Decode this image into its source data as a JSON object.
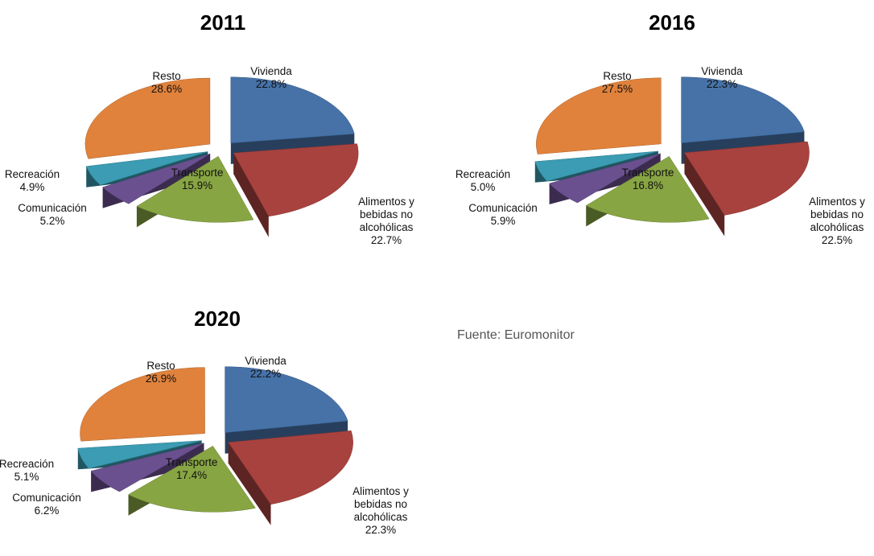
{
  "chart_data": [
    {
      "type": "pie",
      "title": "2011",
      "categories": [
        "Vivienda",
        "Alimentos y bebidas no alcohólicas",
        "Transporte",
        "Comunicación",
        "Recreación",
        "Resto"
      ],
      "values": [
        22.8,
        22.7,
        15.9,
        5.2,
        4.9,
        28.6
      ],
      "value_labels": [
        "22.8%",
        "22.7%",
        "15.9%",
        "5.2%",
        "4.9%",
        "28.6%"
      ],
      "colors": [
        "#4672a8",
        "#a8423f",
        "#88a543",
        "#6b5090",
        "#3b9cb3",
        "#e0823c"
      ]
    },
    {
      "type": "pie",
      "title": "2016",
      "categories": [
        "Vivienda",
        "Alimentos y bebidas no alcohólicas",
        "Transporte",
        "Comunicación",
        "Recreación",
        "Resto"
      ],
      "values": [
        22.3,
        22.5,
        16.8,
        5.9,
        5.0,
        27.5
      ],
      "value_labels": [
        "22.3%",
        "22.5%",
        "16.8%",
        "5.9%",
        "5.0%",
        "27.5%"
      ],
      "colors": [
        "#4672a8",
        "#a8423f",
        "#88a543",
        "#6b5090",
        "#3b9cb3",
        "#e0823c"
      ]
    },
    {
      "type": "pie",
      "title": "2020",
      "categories": [
        "Vivienda",
        "Alimentos y bebidas no alcohólicas",
        "Transporte",
        "Comunicación",
        "Recreación",
        "Resto"
      ],
      "values": [
        22.2,
        22.3,
        17.4,
        6.2,
        5.1,
        26.9
      ],
      "value_labels": [
        "22.2%",
        "22.3%",
        "17.4%",
        "6.2%",
        "5.1%",
        "26.9%"
      ],
      "colors": [
        "#4672a8",
        "#a8423f",
        "#88a543",
        "#6b5090",
        "#3b9cb3",
        "#e0823c"
      ]
    }
  ],
  "source": "Fuente: Euromonitor"
}
